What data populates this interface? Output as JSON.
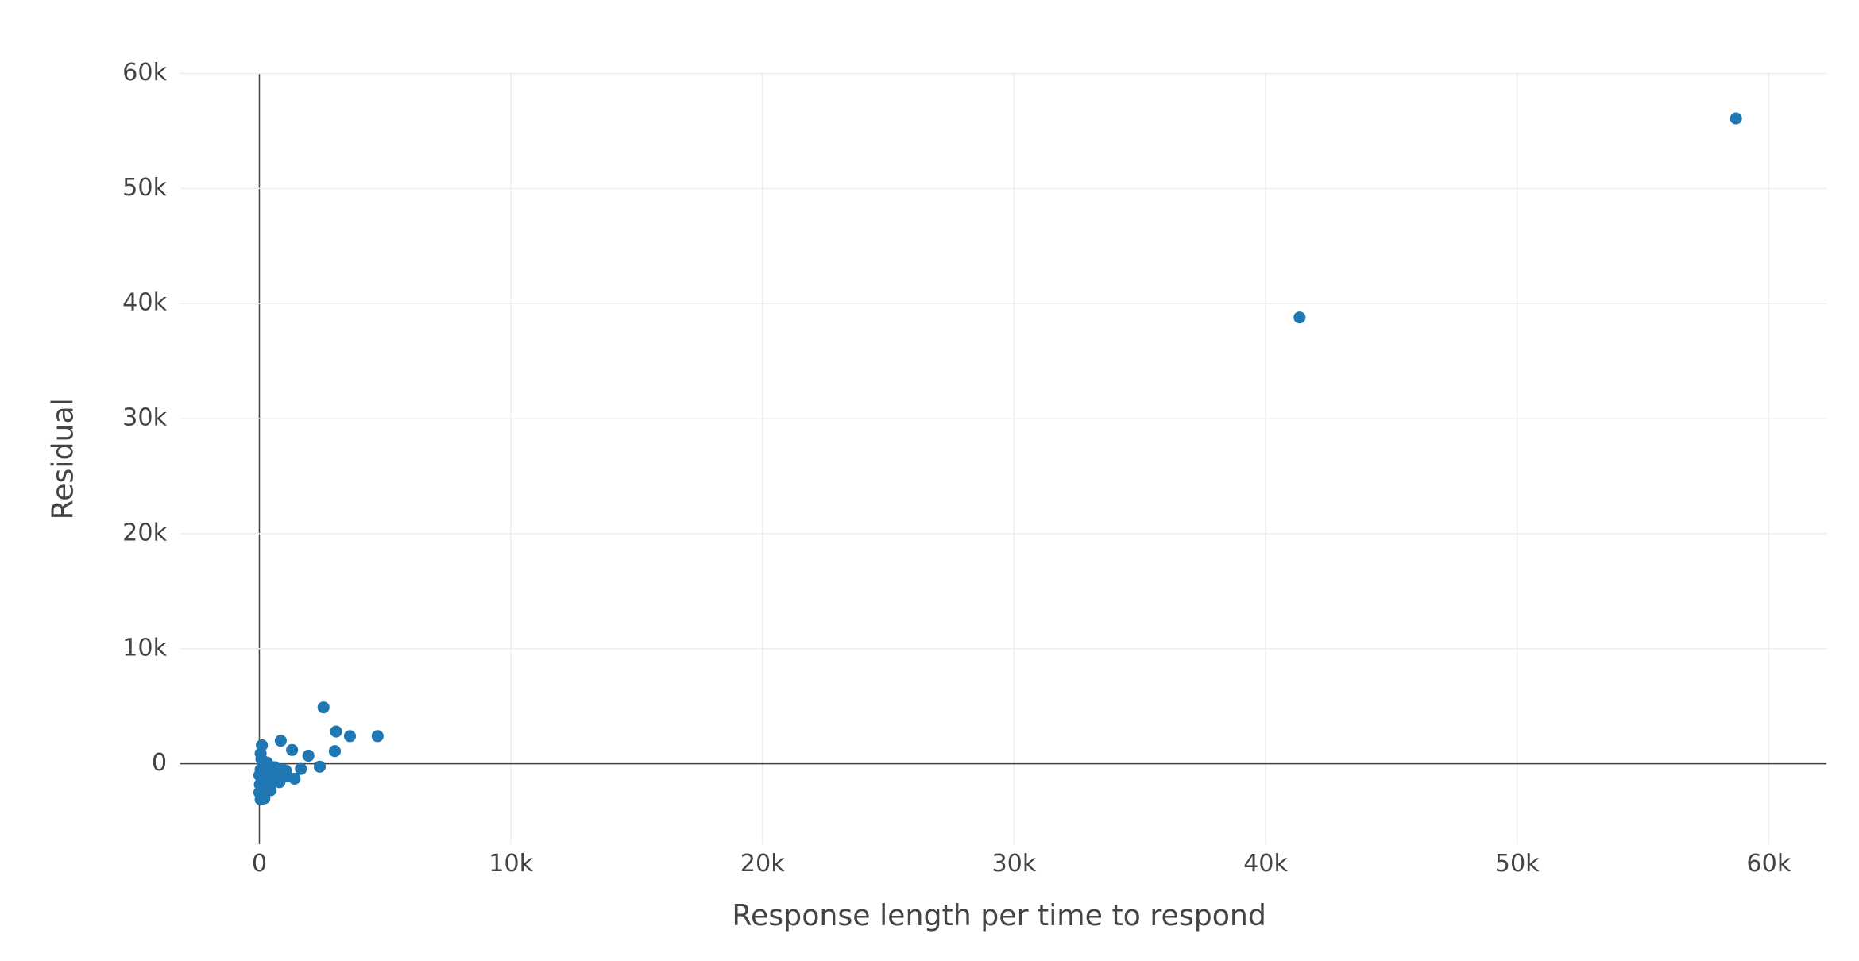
{
  "chart_data": {
    "type": "scatter",
    "x_label": "Response length per time to respond",
    "y_label": "Residual",
    "color": "#1f77b4",
    "grid": true,
    "xlim": [
      -3150,
      62300
    ],
    "ylim": [
      -7000,
      60000
    ],
    "xticks": [
      0,
      {
        "value": 10000,
        "label": "10k"
      },
      {
        "value": 20000,
        "label": "20k"
      },
      {
        "value": 30000,
        "label": "30k"
      },
      {
        "value": 40000,
        "label": "40k"
      },
      {
        "value": 50000,
        "label": "50k"
      },
      {
        "value": 60000,
        "label": "60k"
      }
    ],
    "yticks": [
      0,
      {
        "value": 10000,
        "label": "10k"
      },
      {
        "value": 20000,
        "label": "20k"
      },
      {
        "value": 30000,
        "label": "30k"
      },
      {
        "value": 40000,
        "label": "40k"
      },
      {
        "value": 50000,
        "label": "50k"
      },
      {
        "value": 60000,
        "label": "60k"
      }
    ],
    "x": [
      41350,
      58700,
      2550,
      3050,
      3600,
      4700,
      3000,
      850,
      1300,
      1950,
      2400,
      1650,
      1400,
      800,
      1050,
      600,
      350,
      100,
      50,
      80,
      150,
      200,
      250,
      100,
      300,
      150,
      50,
      0,
      20,
      400,
      500,
      700,
      900,
      1100,
      0,
      50,
      300,
      450,
      200
    ],
    "y": [
      38800,
      56100,
      4900,
      2800,
      2400,
      2400,
      1100,
      2000,
      1200,
      700,
      -250,
      -450,
      -1300,
      -1600,
      -600,
      -300,
      -200,
      1600,
      900,
      400,
      200,
      -500,
      -1000,
      -1500,
      -2200,
      -2800,
      -3100,
      -2500,
      -1800,
      -1600,
      -1000,
      -900,
      -500,
      -1100,
      -1000,
      -500,
      100,
      -2300,
      -3000
    ]
  }
}
